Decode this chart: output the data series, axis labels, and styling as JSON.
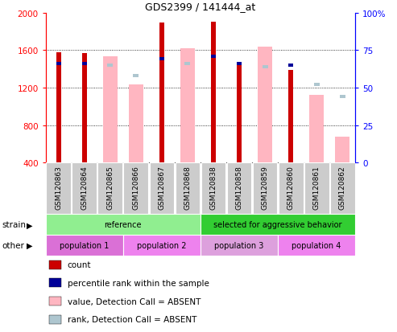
{
  "title": "GDS2399 / 141444_at",
  "samples": [
    "GSM120863",
    "GSM120864",
    "GSM120865",
    "GSM120866",
    "GSM120867",
    "GSM120868",
    "GSM120838",
    "GSM120858",
    "GSM120859",
    "GSM120860",
    "GSM120861",
    "GSM120862"
  ],
  "count_values": [
    1580,
    1570,
    null,
    null,
    1890,
    null,
    1900,
    1450,
    null,
    1390,
    null,
    null
  ],
  "percentile_rank": [
    66,
    66,
    null,
    null,
    69,
    null,
    71,
    66,
    null,
    65,
    null,
    null
  ],
  "absent_value": [
    null,
    null,
    1530,
    1230,
    null,
    1620,
    null,
    null,
    1640,
    null,
    1120,
    680
  ],
  "absent_rank": [
    null,
    null,
    65,
    58,
    null,
    66,
    null,
    null,
    64,
    null,
    52,
    44
  ],
  "ylim_left": [
    400,
    2000
  ],
  "ylim_right": [
    0,
    100
  ],
  "yticks_left": [
    400,
    800,
    1200,
    1600,
    2000
  ],
  "yticks_right": [
    0,
    25,
    50,
    75,
    100
  ],
  "strain_groups": [
    {
      "label": "reference",
      "start": 0,
      "end": 6,
      "color": "#90ee90"
    },
    {
      "label": "selected for aggressive behavior",
      "start": 6,
      "end": 12,
      "color": "#32cd32"
    }
  ],
  "population_groups": [
    {
      "label": "population 1",
      "start": 0,
      "end": 3,
      "color": "#da70d6"
    },
    {
      "label": "population 2",
      "start": 3,
      "end": 6,
      "color": "#ee82ee"
    },
    {
      "label": "population 3",
      "start": 6,
      "end": 9,
      "color": "#dda0dd"
    },
    {
      "label": "population 4",
      "start": 9,
      "end": 12,
      "color": "#ee82ee"
    }
  ],
  "color_count": "#cc0000",
  "color_rank": "#000099",
  "color_absent_value": "#ffb6c1",
  "color_absent_rank": "#aec6cf",
  "background_color": "#ffffff"
}
